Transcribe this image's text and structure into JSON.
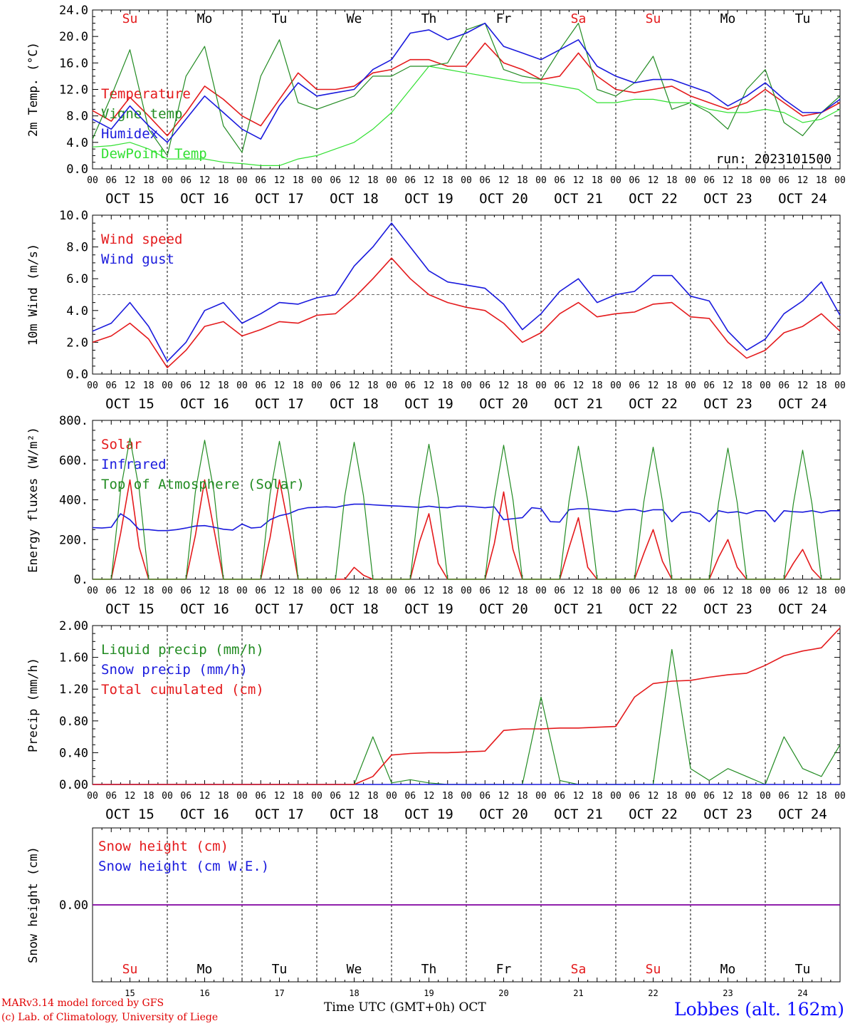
{
  "colors": {
    "red": "#e41a1c",
    "green": "#228b22",
    "blue": "#1a1add",
    "lightgreen": "#32e032",
    "purple": "#8000a0",
    "weekend": "#e41a1c",
    "weekday": "#000000"
  },
  "days": {
    "weekday_labels": [
      "Su",
      "Mo",
      "Tu",
      "We",
      "Th",
      "Fr",
      "Sa",
      "Su",
      "Mo",
      "Tu"
    ],
    "date_labels": [
      "OCT 15",
      "OCT 16",
      "OCT 17",
      "OCT 18",
      "OCT 19",
      "OCT 20",
      "OCT 21",
      "OCT 22",
      "OCT 23",
      "OCT 24"
    ],
    "bottom_numbers": [
      "15",
      "16",
      "17",
      "18",
      "19",
      "20",
      "21",
      "22",
      "23",
      "24"
    ],
    "hour_ticks": [
      "00",
      "06",
      "12",
      "18"
    ],
    "final_tick": "00",
    "weekend_flags": [
      true,
      false,
      false,
      false,
      false,
      false,
      true,
      true,
      false,
      false
    ]
  },
  "run_label": "run: 2023101500",
  "footer": {
    "model_line": "MARv3.14 model forced by GFS",
    "copyright_line": "(c) Lab. of Climatology, University of Liege",
    "time_label": "Time UTC (GMT+0h) OCT",
    "station": "Lobbes (alt. 162m)"
  },
  "chart_data": [
    {
      "type": "line",
      "ylabel": "2m Temp. (°C)",
      "ylim": [
        0,
        24
      ],
      "ytick_labels": [
        "0.0",
        "4.0",
        "8.0",
        "12.0",
        "16.0",
        "20.0",
        "24.0"
      ],
      "x_hours": [
        0,
        6,
        12,
        18,
        24,
        30,
        36,
        42,
        48,
        54,
        60,
        66,
        72,
        78,
        84,
        90,
        96,
        102,
        108,
        114,
        120,
        126,
        132,
        138,
        144,
        150,
        156,
        162,
        168,
        174,
        180,
        186,
        192,
        198,
        204,
        210,
        216,
        222,
        228,
        234,
        240
      ],
      "legend_position": "left",
      "series": [
        {
          "name": "Temperature",
          "color_key": "red",
          "values": [
            8.8,
            7.2,
            10.8,
            8.0,
            5.0,
            8.5,
            12.5,
            10.5,
            8.0,
            6.5,
            10.5,
            14.5,
            12.0,
            12.0,
            12.5,
            14.5,
            15.0,
            16.5,
            16.5,
            15.5,
            15.5,
            19.0,
            16.0,
            15.0,
            13.5,
            14.0,
            17.5,
            14.0,
            12.0,
            11.5,
            12.0,
            12.5,
            11.0,
            10.0,
            9.0,
            10.0,
            12.0,
            10.0,
            8.0,
            8.5,
            10.0
          ]
        },
        {
          "name": "Vigne temp",
          "color_key": "green",
          "values": [
            4.5,
            11.0,
            18.0,
            6.0,
            2.0,
            14.0,
            18.5,
            6.5,
            2.5,
            14.0,
            19.5,
            10.0,
            9.0,
            10.0,
            11.0,
            14.0,
            14.0,
            15.5,
            15.5,
            16.0,
            21.0,
            22.0,
            15.0,
            14.0,
            13.5,
            18.0,
            22.0,
            12.0,
            11.0,
            13.0,
            17.0,
            9.0,
            10.0,
            8.5,
            6.0,
            12.0,
            15.0,
            7.0,
            5.0,
            8.5,
            11.0
          ]
        },
        {
          "name": "Humidex",
          "color_key": "blue",
          "values": [
            7.5,
            6.0,
            9.5,
            6.5,
            4.0,
            7.5,
            11.0,
            8.5,
            6.0,
            4.5,
            9.5,
            13.0,
            11.0,
            11.5,
            12.0,
            15.0,
            16.5,
            20.5,
            21.0,
            19.5,
            20.5,
            22.0,
            18.5,
            17.5,
            16.5,
            18.0,
            19.5,
            15.5,
            14.0,
            13.0,
            13.5,
            13.5,
            12.5,
            11.5,
            9.5,
            11.0,
            13.0,
            10.5,
            8.5,
            8.5,
            10.5
          ]
        },
        {
          "name": "DewPoint Temp",
          "color_key": "lightgreen",
          "values": [
            3.3,
            3.5,
            4.0,
            3.0,
            1.5,
            1.5,
            1.5,
            1.0,
            0.8,
            0.5,
            0.5,
            1.5,
            2.0,
            3.0,
            4.0,
            6.0,
            8.5,
            12.0,
            15.5,
            15.0,
            14.5,
            14.0,
            13.5,
            13.0,
            13.0,
            12.5,
            12.0,
            10.0,
            10.0,
            10.5,
            10.5,
            10.0,
            10.0,
            9.0,
            8.5,
            8.5,
            9.0,
            8.5,
            7.0,
            7.5,
            9.0
          ]
        }
      ]
    },
    {
      "type": "line",
      "ylabel": "10m Wind (m/s)",
      "ylim": [
        0,
        10
      ],
      "ytick_labels": [
        "0.0",
        "2.0",
        "4.0",
        "6.0",
        "8.0",
        "10.0"
      ],
      "reference_line": 5,
      "x_hours": [
        0,
        6,
        12,
        18,
        24,
        30,
        36,
        42,
        48,
        54,
        60,
        66,
        72,
        78,
        84,
        90,
        96,
        102,
        108,
        114,
        120,
        126,
        132,
        138,
        144,
        150,
        156,
        162,
        168,
        174,
        180,
        186,
        192,
        198,
        204,
        210,
        216,
        222,
        228,
        234,
        240
      ],
      "series": [
        {
          "name": "Wind speed",
          "color_key": "red",
          "values": [
            2.0,
            2.4,
            3.2,
            2.2,
            0.4,
            1.5,
            3.0,
            3.3,
            2.4,
            2.8,
            3.3,
            3.2,
            3.7,
            3.8,
            4.8,
            6.0,
            7.3,
            6.0,
            5.0,
            4.5,
            4.2,
            4.0,
            3.2,
            2.0,
            2.6,
            3.8,
            4.5,
            3.6,
            3.8,
            3.9,
            4.4,
            4.5,
            3.6,
            3.5,
            2.0,
            1.0,
            1.5,
            2.6,
            3.0,
            3.8,
            2.7
          ]
        },
        {
          "name": "Wind gust",
          "color_key": "blue",
          "values": [
            2.7,
            3.2,
            4.5,
            3.0,
            0.8,
            2.0,
            4.0,
            4.5,
            3.2,
            3.8,
            4.5,
            4.4,
            4.8,
            5.0,
            6.8,
            8.0,
            9.5,
            8.0,
            6.5,
            5.8,
            5.6,
            5.4,
            4.4,
            2.8,
            3.8,
            5.2,
            6.0,
            4.5,
            5.0,
            5.2,
            6.2,
            6.2,
            4.9,
            4.6,
            2.7,
            1.5,
            2.2,
            3.8,
            4.6,
            5.8,
            3.7
          ]
        }
      ]
    },
    {
      "type": "line",
      "ylabel": "Energy fluxes (W/m²)",
      "ylim": [
        0,
        800
      ],
      "ytick_labels": [
        "0.",
        "200.",
        "400.",
        "600.",
        "800."
      ],
      "x_hours": [
        0,
        3,
        6,
        9,
        12,
        15,
        18,
        21,
        24,
        27,
        30,
        33,
        36,
        39,
        42,
        45,
        48,
        51,
        54,
        57,
        60,
        63,
        66,
        69,
        72,
        75,
        78,
        81,
        84,
        87,
        90,
        93,
        96,
        99,
        102,
        105,
        108,
        111,
        114,
        117,
        120,
        123,
        126,
        129,
        132,
        135,
        138,
        141,
        144,
        147,
        150,
        153,
        156,
        159,
        162,
        165,
        168,
        171,
        174,
        177,
        180,
        183,
        186,
        189,
        192,
        195,
        198,
        201,
        204,
        207,
        210,
        213,
        216,
        219,
        222,
        225,
        228,
        231,
        234,
        237,
        240
      ],
      "series": [
        {
          "name": "Solar",
          "color_key": "red",
          "values": [
            0,
            0,
            0,
            230,
            500,
            160,
            0,
            0,
            0,
            0,
            0,
            220,
            500,
            250,
            0,
            0,
            0,
            0,
            0,
            210,
            500,
            260,
            0,
            0,
            0,
            0,
            0,
            0,
            60,
            20,
            0,
            0,
            0,
            0,
            0,
            190,
            330,
            80,
            0,
            0,
            0,
            0,
            0,
            180,
            440,
            150,
            0,
            0,
            0,
            0,
            0,
            160,
            310,
            60,
            0,
            0,
            0,
            0,
            0,
            130,
            250,
            90,
            0,
            0,
            0,
            0,
            0,
            110,
            200,
            60,
            0,
            0,
            0,
            0,
            0,
            80,
            150,
            50,
            0,
            0,
            0
          ]
        },
        {
          "name": "Infrared",
          "color_key": "blue",
          "values": [
            260,
            258,
            262,
            330,
            300,
            250,
            250,
            245,
            245,
            250,
            258,
            268,
            270,
            262,
            252,
            248,
            278,
            258,
            262,
            300,
            320,
            330,
            350,
            360,
            362,
            365,
            362,
            372,
            378,
            378,
            375,
            372,
            370,
            368,
            365,
            362,
            368,
            362,
            360,
            368,
            368,
            364,
            360,
            365,
            300,
            305,
            310,
            360,
            355,
            290,
            288,
            350,
            355,
            355,
            350,
            345,
            340,
            350,
            352,
            340,
            350,
            350,
            290,
            335,
            340,
            330,
            290,
            345,
            335,
            340,
            330,
            345,
            345,
            290,
            345,
            340,
            338,
            345,
            335,
            345,
            345
          ]
        },
        {
          "name": "Top of Atmosphere (Solar)",
          "color_key": "green",
          "values": [
            0,
            0,
            0,
            450,
            710,
            450,
            0,
            0,
            0,
            0,
            0,
            440,
            700,
            440,
            0,
            0,
            0,
            0,
            0,
            430,
            695,
            430,
            0,
            0,
            0,
            0,
            0,
            420,
            690,
            420,
            0,
            0,
            0,
            0,
            0,
            410,
            680,
            410,
            0,
            0,
            0,
            0,
            0,
            400,
            675,
            400,
            0,
            0,
            0,
            0,
            0,
            395,
            670,
            395,
            0,
            0,
            0,
            0,
            0,
            390,
            665,
            390,
            0,
            0,
            0,
            0,
            0,
            385,
            660,
            385,
            0,
            0,
            0,
            0,
            0,
            380,
            650,
            380,
            0,
            0,
            0
          ]
        }
      ]
    },
    {
      "type": "line",
      "ylabel": "Precip (mm/h)",
      "ylim": [
        0,
        2
      ],
      "ytick_labels": [
        "0.00",
        "0.40",
        "0.80",
        "1.20",
        "1.60",
        "2.00"
      ],
      "x_hours": [
        0,
        6,
        12,
        18,
        24,
        30,
        36,
        42,
        48,
        54,
        60,
        66,
        72,
        78,
        84,
        90,
        96,
        102,
        108,
        114,
        120,
        126,
        132,
        138,
        144,
        150,
        156,
        162,
        168,
        174,
        180,
        186,
        192,
        198,
        204,
        210,
        216,
        222,
        228,
        234,
        240
      ],
      "series": [
        {
          "name": "Liquid precip (mm/h)",
          "color_key": "green",
          "values": [
            0,
            0,
            0,
            0,
            0,
            0,
            0,
            0,
            0,
            0,
            0,
            0,
            0,
            0,
            0,
            0.6,
            0.02,
            0.06,
            0.02,
            0,
            0,
            0,
            0,
            0,
            1.1,
            0.05,
            0,
            0,
            0,
            0,
            0,
            1.7,
            0.2,
            0.05,
            0.2,
            0.1,
            0,
            0.6,
            0.2,
            0.1,
            0.5
          ]
        },
        {
          "name": "Snow precip (mm/h)",
          "color_key": "blue",
          "values": [
            0,
            0,
            0,
            0,
            0,
            0,
            0,
            0,
            0,
            0,
            0,
            0,
            0,
            0,
            0,
            0,
            0,
            0,
            0,
            0,
            0,
            0,
            0,
            0,
            0,
            0,
            0,
            0,
            0,
            0,
            0,
            0,
            0,
            0,
            0,
            0,
            0,
            0,
            0,
            0,
            0
          ]
        },
        {
          "name": "Total cumulated (cm)",
          "color_key": "red",
          "values": [
            0,
            0,
            0,
            0,
            0,
            0,
            0,
            0,
            0,
            0,
            0,
            0,
            0,
            0,
            0,
            0.1,
            0.37,
            0.39,
            0.4,
            0.4,
            0.41,
            0.42,
            0.68,
            0.7,
            0.7,
            0.71,
            0.71,
            0.72,
            0.73,
            1.1,
            1.27,
            1.3,
            1.31,
            1.35,
            1.38,
            1.4,
            1.5,
            1.62,
            1.68,
            1.72,
            1.97
          ]
        }
      ]
    },
    {
      "type": "line",
      "ylabel": "Snow height (cm)",
      "ylim": [
        -1,
        1
      ],
      "ytick_labels": [
        "0.00"
      ],
      "x_hours": [
        0,
        240
      ],
      "series": [
        {
          "name": "Snow height (cm)",
          "color_key": "red",
          "values": [
            0,
            0
          ]
        },
        {
          "name": "Snow height (cm W.E.)",
          "color_key": "blue",
          "values": [
            0,
            0
          ]
        }
      ]
    }
  ]
}
